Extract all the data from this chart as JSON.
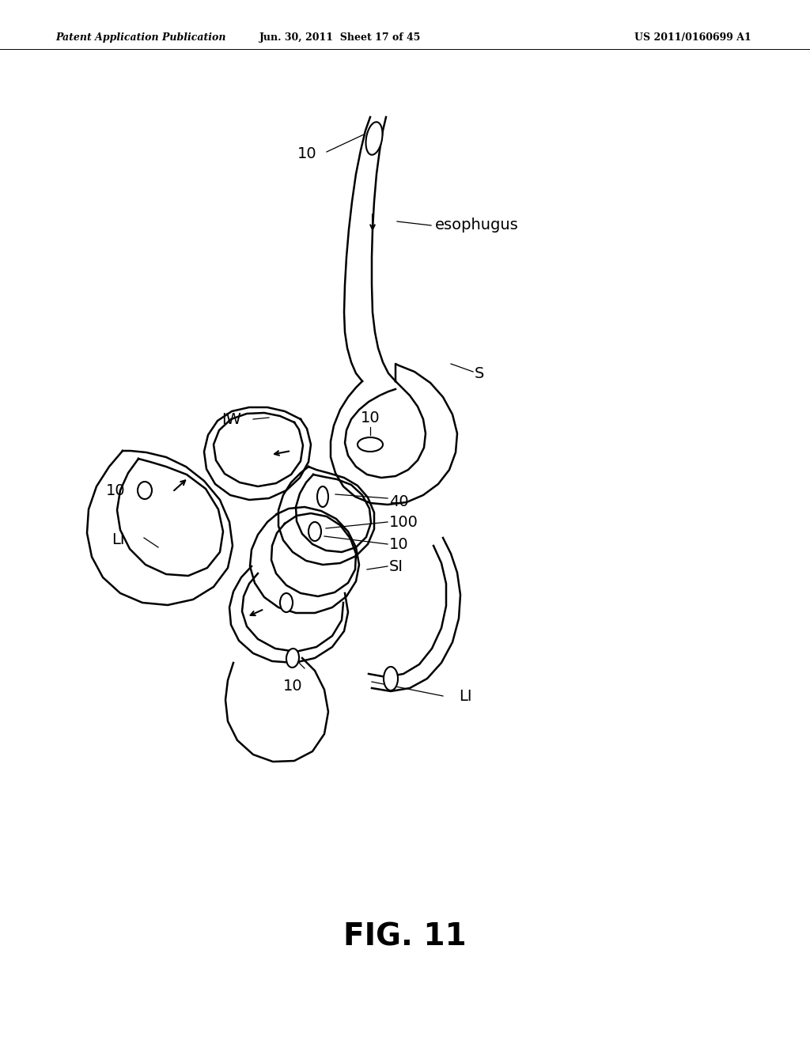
{
  "background_color": "#ffffff",
  "fig_width": 10.24,
  "fig_height": 13.2,
  "dpi": 100,
  "header_left": "Patent Application Publication",
  "header_center": "Jun. 30, 2011  Sheet 17 of 45",
  "header_right": "US 2011/0160699 A1",
  "figure_label": "FIG. 11"
}
